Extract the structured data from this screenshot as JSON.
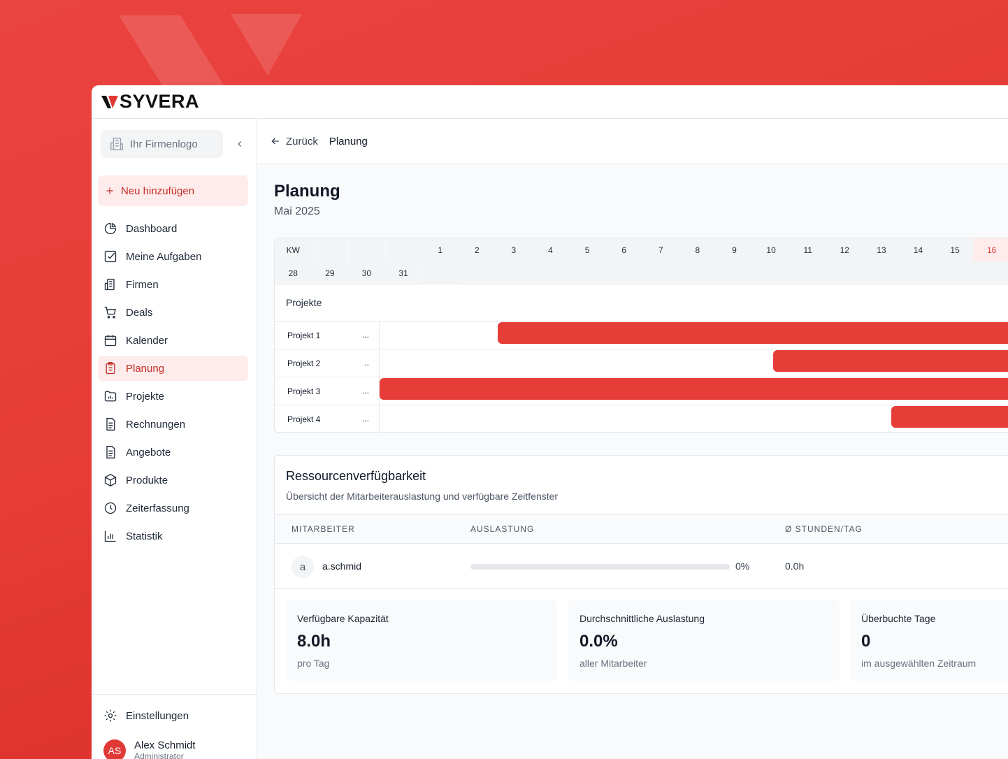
{
  "brand": {
    "name": "SYVERA",
    "accent": "#e63d39"
  },
  "sidebar": {
    "company_logo_placeholder": "Ihr Firmenlogo",
    "new_button": "Neu hinzufügen",
    "items": [
      {
        "label": "Dashboard",
        "icon": "pie-chart-icon"
      },
      {
        "label": "Meine Aufgaben",
        "icon": "checkbox-icon"
      },
      {
        "label": "Firmen",
        "icon": "building-icon"
      },
      {
        "label": "Deals",
        "icon": "cart-icon"
      },
      {
        "label": "Kalender",
        "icon": "calendar-icon"
      },
      {
        "label": "Planung",
        "icon": "clipboard-icon",
        "active": true
      },
      {
        "label": "Projekte",
        "icon": "folder-chart-icon"
      },
      {
        "label": "Rechnungen",
        "icon": "document-icon"
      },
      {
        "label": "Angebote",
        "icon": "document-icon"
      },
      {
        "label": "Produkte",
        "icon": "package-icon"
      },
      {
        "label": "Zeiterfassung",
        "icon": "clock-icon"
      },
      {
        "label": "Statistik",
        "icon": "bar-chart-icon"
      }
    ],
    "settings": "Einstellungen",
    "user": {
      "initials": "AS",
      "name": "Alex Schmidt",
      "role": "Administrator"
    }
  },
  "breadcrumb": {
    "back": "Zurück",
    "current": "Planung"
  },
  "page": {
    "title": "Planung",
    "subtitle": "Mai 2025"
  },
  "gantt": {
    "kw_label": "KW",
    "row1_days": [
      "1",
      "2",
      "3",
      "4",
      "5",
      "6",
      "7",
      "8",
      "9",
      "10",
      "11",
      "12",
      "13",
      "14",
      "15",
      "16"
    ],
    "row2_days": [
      "28",
      "29",
      "30",
      "31"
    ],
    "today": "16",
    "projects_header": "Projekte",
    "projects": [
      {
        "name": "Projekt 1",
        "dots": "...",
        "start_day": 4
      },
      {
        "name": "Projekt 2",
        "dots": "..",
        "start_day": 11
      },
      {
        "name": "Projekt 3",
        "dots": "...",
        "start_day": 1
      },
      {
        "name": "Projekt 4",
        "dots": "...",
        "start_day": 14
      }
    ]
  },
  "resources": {
    "title": "Ressourcenverfügbarkeit",
    "subtitle": "Übersicht der Mitarbeiterauslastung und verfügbare Zeitfenster",
    "columns": [
      "MITARBEITER",
      "AUSLASTUNG",
      "Ø STUNDEN/TAG"
    ],
    "rows": [
      {
        "initial": "a",
        "name": "a.schmid",
        "utilization": 0,
        "utilization_label": "0%",
        "hours": "0.0h"
      }
    ],
    "stats": [
      {
        "label": "Verfügbare Kapazität",
        "value": "8.0h",
        "sub": "pro Tag"
      },
      {
        "label": "Durchschnittliche Auslastung",
        "value": "0.0%",
        "sub": "aller Mitarbeiter"
      },
      {
        "label": "Überbuchte Tage",
        "value": "0",
        "sub": "im ausgewählten Zeitraum"
      }
    ]
  }
}
